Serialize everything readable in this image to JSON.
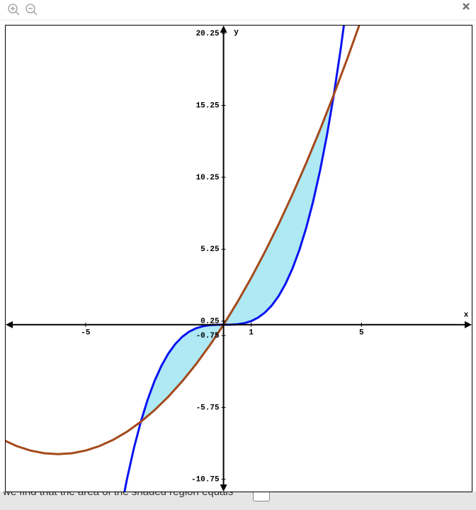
{
  "chart_data": {
    "type": "line",
    "x_label": "x",
    "y_label": "y",
    "xlim": [
      -7.9,
      9
    ],
    "ylim": [
      -11.6,
      20.8
    ],
    "xticks": [
      -5,
      1,
      5
    ],
    "yticks": [
      20.25,
      15.25,
      10.25,
      5.25,
      0.25,
      -0.75,
      -5.75,
      -10.75
    ],
    "shade_color": "#aee9f4",
    "series": [
      {
        "color": "#0a14f0",
        "x": [
          -3.75,
          -3.5,
          -3.25,
          -3,
          -2.75,
          -2.5,
          -2.25,
          -2,
          -1.75,
          -1.5,
          -1.25,
          -1,
          -0.75,
          -0.5,
          -0.25,
          0,
          0.25,
          0.5,
          0.75,
          1,
          1.25,
          1.5,
          1.75,
          2,
          2.25,
          2.5,
          2.75,
          3,
          3.25,
          3.5,
          3.75,
          4,
          4.25,
          4.5
        ],
        "values": [
          -13.18,
          -10.72,
          -8.582,
          -6.75,
          -5.199,
          -3.906,
          -2.848,
          -2,
          -1.34,
          -0.844,
          -0.488,
          -0.25,
          -0.105,
          -0.031,
          -0.004,
          0,
          0.004,
          0.031,
          0.105,
          0.25,
          0.488,
          0.844,
          1.34,
          2,
          2.848,
          3.906,
          5.199,
          6.75,
          8.582,
          10.72,
          13.18,
          16,
          19.19,
          22.78
        ]
      },
      {
        "color": "#a5491b",
        "x": [
          -8,
          -7.5,
          -7,
          -6.5,
          -6,
          -5.5,
          -5,
          -4.5,
          -4,
          -3.5,
          -3,
          -2.5,
          -2,
          -1.5,
          -1,
          -0.5,
          0,
          0.5,
          1,
          1.5,
          2,
          2.5,
          3,
          3.5,
          4,
          4.5,
          5,
          5.5
        ],
        "values": [
          -8,
          -8.4375,
          -8.75,
          -8.9375,
          -9,
          -8.9375,
          -8.75,
          -8.4375,
          -8,
          -7.4375,
          -6.75,
          -5.9375,
          -5,
          -3.9375,
          -2.75,
          -1.4375,
          0,
          1.5625,
          3.25,
          5.0625,
          7,
          9.0625,
          11.25,
          13.5625,
          16,
          18.5625,
          21.25,
          24.0625
        ]
      }
    ]
  },
  "footer": {
    "text": "we find that the area of the shaded region equals"
  }
}
